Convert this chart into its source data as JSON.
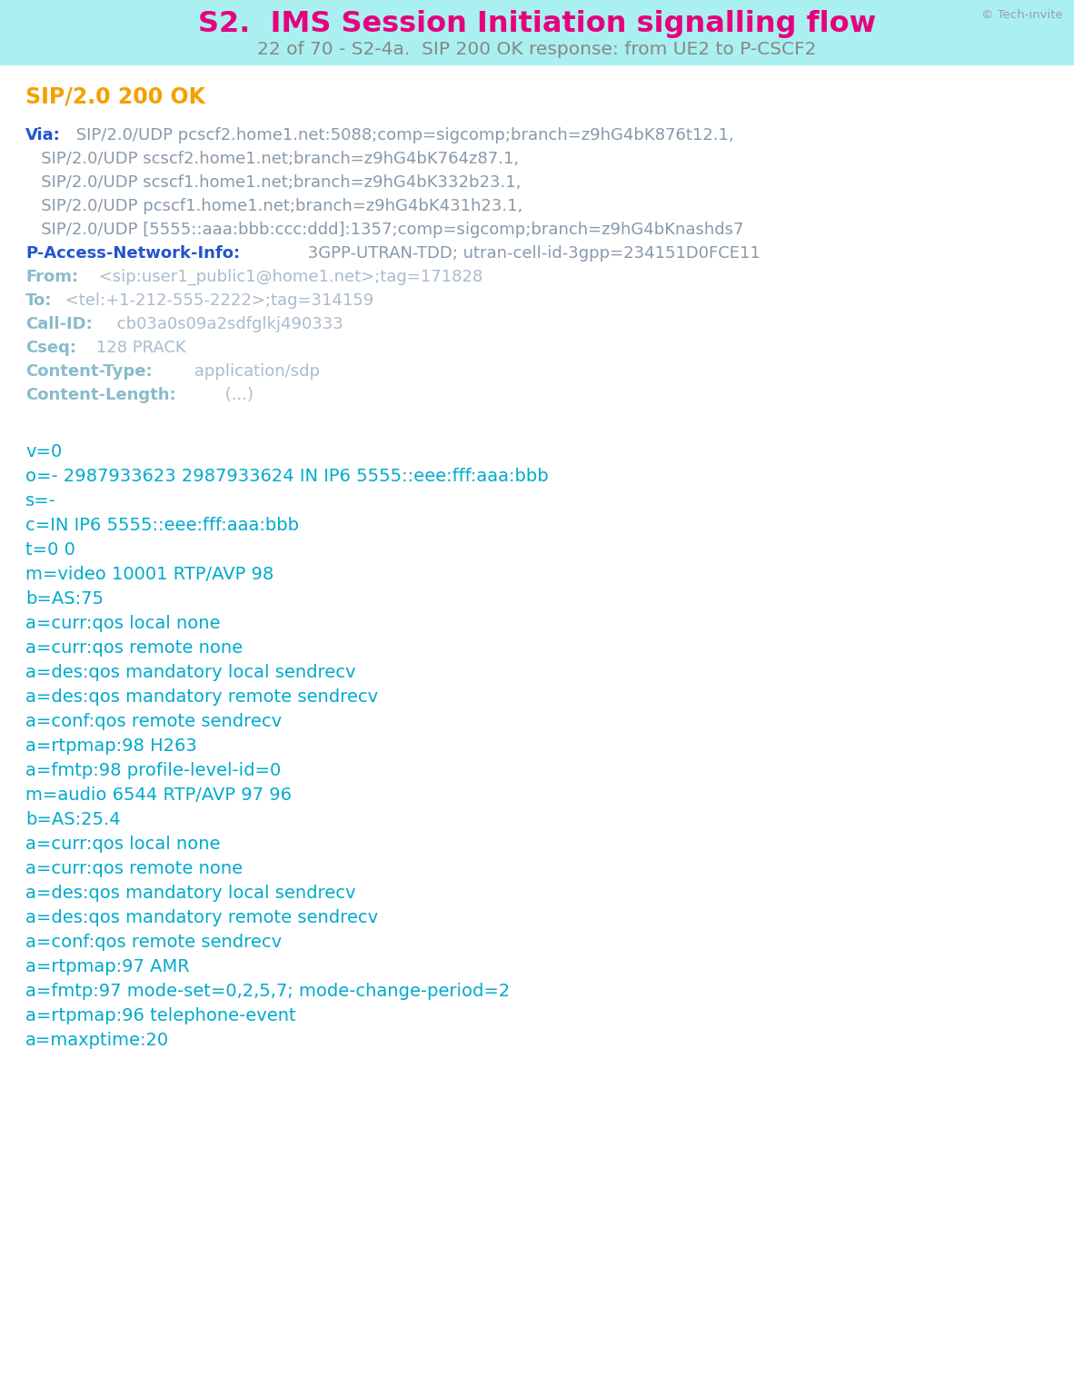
{
  "header_bg": "#aaf0f0",
  "content_bg": "#ffffff",
  "page_bg": "#c8f5f5",
  "title_color": "#e6007e",
  "subtitle_color": "#888888",
  "techInvite_color": "#9999bb",
  "title": "S2.  IMS Session Initiation signalling flow",
  "subtitle": "22 of 70 - S2-4a.  SIP 200 OK response: from UE2 to P-CSCF2",
  "techInvite_text": "© Tech-invite",
  "lines": [
    {
      "type": "simple",
      "text": "SIP/2.0 200 OK",
      "color": "#f5a000",
      "bold": true,
      "size": 17
    },
    {
      "type": "blank"
    },
    {
      "type": "mixed",
      "size": 13,
      "parts": [
        {
          "text": "Via:",
          "color": "#2255cc",
          "bold": true
        },
        {
          "text": " SIP/2.0/UDP pcscf2.home1.net:5088;comp=sigcomp;branch=z9hG4bK876t12.1,",
          "color": "#8899aa",
          "bold": false
        }
      ]
    },
    {
      "type": "simple",
      "text": "   SIP/2.0/UDP scscf2.home1.net;branch=z9hG4bK764z87.1,",
      "color": "#8899aa",
      "bold": false,
      "size": 13
    },
    {
      "type": "simple",
      "text": "   SIP/2.0/UDP scscf1.home1.net;branch=z9hG4bK332b23.1,",
      "color": "#8899aa",
      "bold": false,
      "size": 13
    },
    {
      "type": "simple",
      "text": "   SIP/2.0/UDP pcscf1.home1.net;branch=z9hG4bK431h23.1,",
      "color": "#8899aa",
      "bold": false,
      "size": 13
    },
    {
      "type": "simple",
      "text": "   SIP/2.0/UDP [5555::aaa:bbb:ccc:ddd]:1357;comp=sigcomp;branch=z9hG4bKnashds7",
      "color": "#8899aa",
      "bold": false,
      "size": 13
    },
    {
      "type": "mixed",
      "size": 13,
      "parts": [
        {
          "text": "P-Access-Network-Info:",
          "color": "#2255cc",
          "bold": true
        },
        {
          "text": " 3GPP-UTRAN-TDD; utran-cell-id-3gpp=234151D0FCE11",
          "color": "#8899aa",
          "bold": false
        }
      ]
    },
    {
      "type": "mixed",
      "size": 13,
      "parts": [
        {
          "text": "From:",
          "color": "#88bbcc",
          "bold": true
        },
        {
          "text": " <sip:user1_public1@home1.net>;tag=171828",
          "color": "#aabbcc",
          "bold": false
        }
      ]
    },
    {
      "type": "mixed",
      "size": 13,
      "parts": [
        {
          "text": "To:",
          "color": "#88bbcc",
          "bold": true
        },
        {
          "text": " <tel:+1-212-555-2222>;tag=314159",
          "color": "#aabbcc",
          "bold": false
        }
      ]
    },
    {
      "type": "mixed",
      "size": 13,
      "parts": [
        {
          "text": "Call-ID:",
          "color": "#88bbcc",
          "bold": true
        },
        {
          "text": " cb03a0s09a2sdfglkj490333",
          "color": "#aabbcc",
          "bold": false
        }
      ]
    },
    {
      "type": "mixed",
      "size": 13,
      "parts": [
        {
          "text": "Cseq:",
          "color": "#88bbcc",
          "bold": true
        },
        {
          "text": " 128 PRACK",
          "color": "#aabbcc",
          "bold": false
        }
      ]
    },
    {
      "type": "mixed",
      "size": 13,
      "parts": [
        {
          "text": "Content-Type:",
          "color": "#88bbcc",
          "bold": true
        },
        {
          "text": " application/sdp",
          "color": "#aabbcc",
          "bold": false
        }
      ]
    },
    {
      "type": "mixed",
      "size": 13,
      "parts": [
        {
          "text": "Content-Length:",
          "color": "#88bbcc",
          "bold": true
        },
        {
          "text": " (...)",
          "color": "#aabbcc",
          "bold": false
        }
      ]
    },
    {
      "type": "blank"
    },
    {
      "type": "blank"
    },
    {
      "type": "simple",
      "text": "v=0",
      "color": "#00aacc",
      "bold": false,
      "size": 14
    },
    {
      "type": "simple",
      "text": "o=- 2987933623 2987933624 IN IP6 5555::eee:fff:aaa:bbb",
      "color": "#00aacc",
      "bold": false,
      "size": 14
    },
    {
      "type": "simple",
      "text": "s=-",
      "color": "#00aacc",
      "bold": false,
      "size": 14
    },
    {
      "type": "simple",
      "text": "c=IN IP6 5555::eee:fff:aaa:bbb",
      "color": "#00aacc",
      "bold": false,
      "size": 14
    },
    {
      "type": "simple",
      "text": "t=0 0",
      "color": "#00aacc",
      "bold": false,
      "size": 14
    },
    {
      "type": "simple",
      "text": "m=video 10001 RTP/AVP 98",
      "color": "#00aacc",
      "bold": false,
      "size": 14
    },
    {
      "type": "simple",
      "text": "b=AS:75",
      "color": "#00aacc",
      "bold": false,
      "size": 14
    },
    {
      "type": "simple",
      "text": "a=curr:qos local none",
      "color": "#00aacc",
      "bold": false,
      "size": 14
    },
    {
      "type": "simple",
      "text": "a=curr:qos remote none",
      "color": "#00aacc",
      "bold": false,
      "size": 14
    },
    {
      "type": "simple",
      "text": "a=des:qos mandatory local sendrecv",
      "color": "#00aacc",
      "bold": false,
      "size": 14
    },
    {
      "type": "simple",
      "text": "a=des:qos mandatory remote sendrecv",
      "color": "#00aacc",
      "bold": false,
      "size": 14
    },
    {
      "type": "simple",
      "text": "a=conf:qos remote sendrecv",
      "color": "#00aacc",
      "bold": false,
      "size": 14
    },
    {
      "type": "simple",
      "text": "a=rtpmap:98 H263",
      "color": "#00aacc",
      "bold": false,
      "size": 14
    },
    {
      "type": "simple",
      "text": "a=fmtp:98 profile-level-id=0",
      "color": "#00aacc",
      "bold": false,
      "size": 14
    },
    {
      "type": "simple",
      "text": "m=audio 6544 RTP/AVP 97 96",
      "color": "#00aacc",
      "bold": false,
      "size": 14
    },
    {
      "type": "simple",
      "text": "b=AS:25.4",
      "color": "#00aacc",
      "bold": false,
      "size": 14
    },
    {
      "type": "simple",
      "text": "a=curr:qos local none",
      "color": "#00aacc",
      "bold": false,
      "size": 14
    },
    {
      "type": "simple",
      "text": "a=curr:qos remote none",
      "color": "#00aacc",
      "bold": false,
      "size": 14
    },
    {
      "type": "simple",
      "text": "a=des:qos mandatory local sendrecv",
      "color": "#00aacc",
      "bold": false,
      "size": 14
    },
    {
      "type": "simple",
      "text": "a=des:qos mandatory remote sendrecv",
      "color": "#00aacc",
      "bold": false,
      "size": 14
    },
    {
      "type": "simple",
      "text": "a=conf:qos remote sendrecv",
      "color": "#00aacc",
      "bold": false,
      "size": 14
    },
    {
      "type": "simple",
      "text": "a=rtpmap:97 AMR",
      "color": "#00aacc",
      "bold": false,
      "size": 14
    },
    {
      "type": "simple",
      "text": "a=fmtp:97 mode-set=0,2,5,7; mode-change-period=2",
      "color": "#00aacc",
      "bold": false,
      "size": 14
    },
    {
      "type": "simple",
      "text": "a=rtpmap:96 telephone-event",
      "color": "#00aacc",
      "bold": false,
      "size": 14
    },
    {
      "type": "simple",
      "text": "a=maxptime:20",
      "color": "#00aacc",
      "bold": false,
      "size": 14
    }
  ]
}
